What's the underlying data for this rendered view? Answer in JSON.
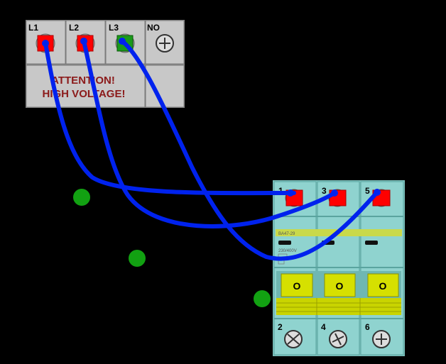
{
  "supply_panel": {
    "terminals": [
      {
        "label": "L1",
        "color": "#ff0000"
      },
      {
        "label": "L2",
        "color": "#ff0000"
      },
      {
        "label": "L3",
        "color": "#1a9a1a"
      },
      {
        "label": "NO",
        "color": "screw"
      }
    ],
    "warning_line1": "ATTENTION!",
    "warning_line2": "HIGH VOLTAGE!"
  },
  "breaker": {
    "top_terminals": [
      {
        "label": "1",
        "color": "#ff0000"
      },
      {
        "label": "3",
        "color": "#ff0000"
      },
      {
        "label": "5",
        "color": "#ff0000"
      }
    ],
    "bottom_terminals": [
      {
        "label": "2"
      },
      {
        "label": "4"
      },
      {
        "label": "6"
      }
    ],
    "model": "BA47-29",
    "rating": "230/400V",
    "switch_labels": [
      "O",
      "O",
      "O"
    ]
  },
  "colors": {
    "wire": "#0022ee",
    "panel": "#c8c8c8",
    "breaker_body": "#8fd3cf",
    "switch": "#d6e000",
    "green_marker": "#12a112"
  }
}
